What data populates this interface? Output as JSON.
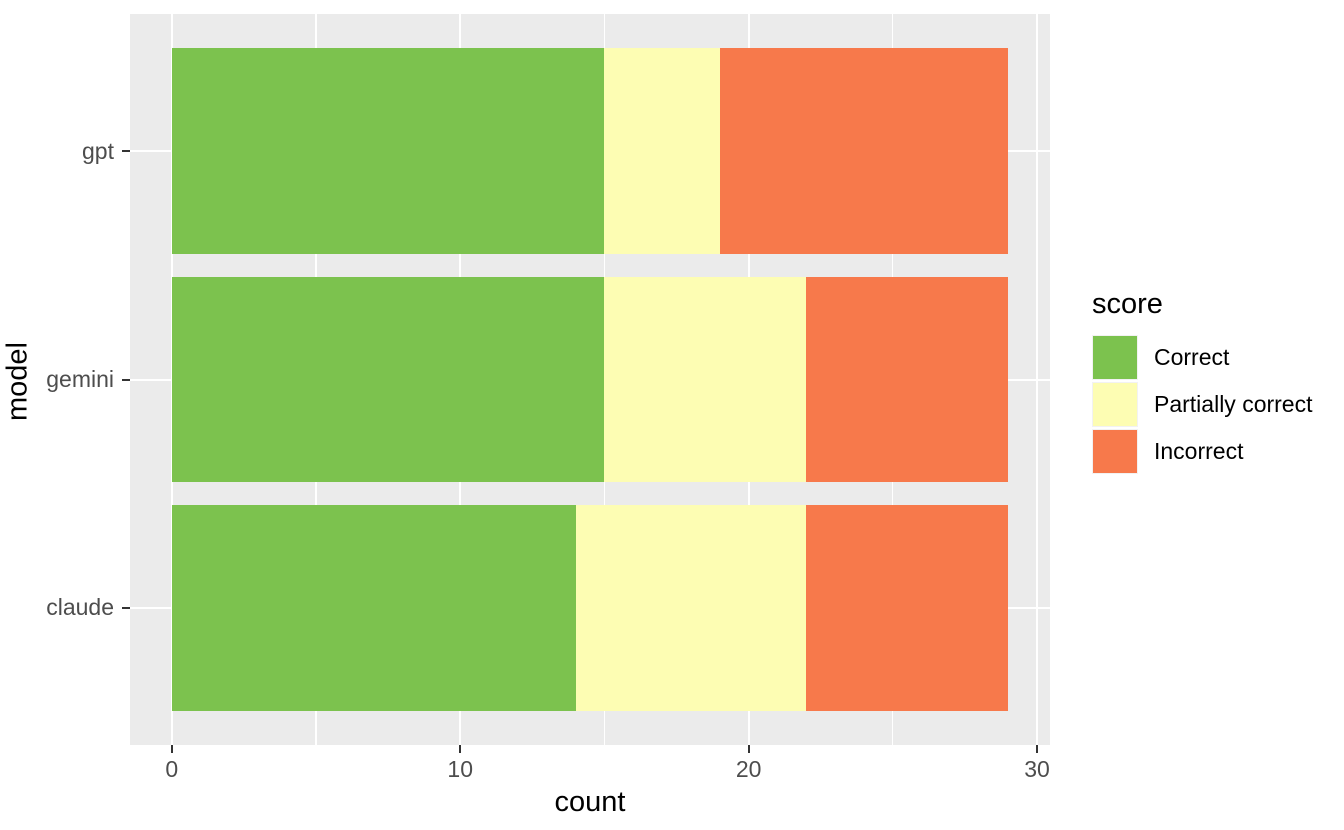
{
  "colors": {
    "background": "#FFFFFF",
    "panel_background": "#EBEBEB",
    "gridline": "#FFFFFF",
    "tick_mark": "#333333",
    "axis_text": "#4D4D4D",
    "title_text": "#000000",
    "legend_key_background": "#F2F2F2"
  },
  "chart_data": {
    "type": "bar",
    "orientation": "horizontal",
    "stacked": true,
    "title": "",
    "xlabel": "count",
    "ylabel": "model",
    "categories": [
      "gpt",
      "gemini",
      "claude"
    ],
    "series": [
      {
        "name": "Correct",
        "color": "#7CC24E",
        "values": [
          15,
          15,
          14
        ]
      },
      {
        "name": "Partially correct",
        "color": "#FDFDB3",
        "values": [
          4,
          7,
          8
        ]
      },
      {
        "name": "Incorrect",
        "color": "#F7794B",
        "values": [
          10,
          7,
          7
        ]
      }
    ],
    "bar_totals": [
      29,
      29,
      29
    ],
    "x_ticks": [
      0,
      10,
      20,
      30
    ],
    "x_minor_ticks": [
      5,
      15,
      25
    ],
    "xlim": [
      0,
      29
    ],
    "grid": true,
    "legend_title": "score",
    "legend_position": "right"
  }
}
